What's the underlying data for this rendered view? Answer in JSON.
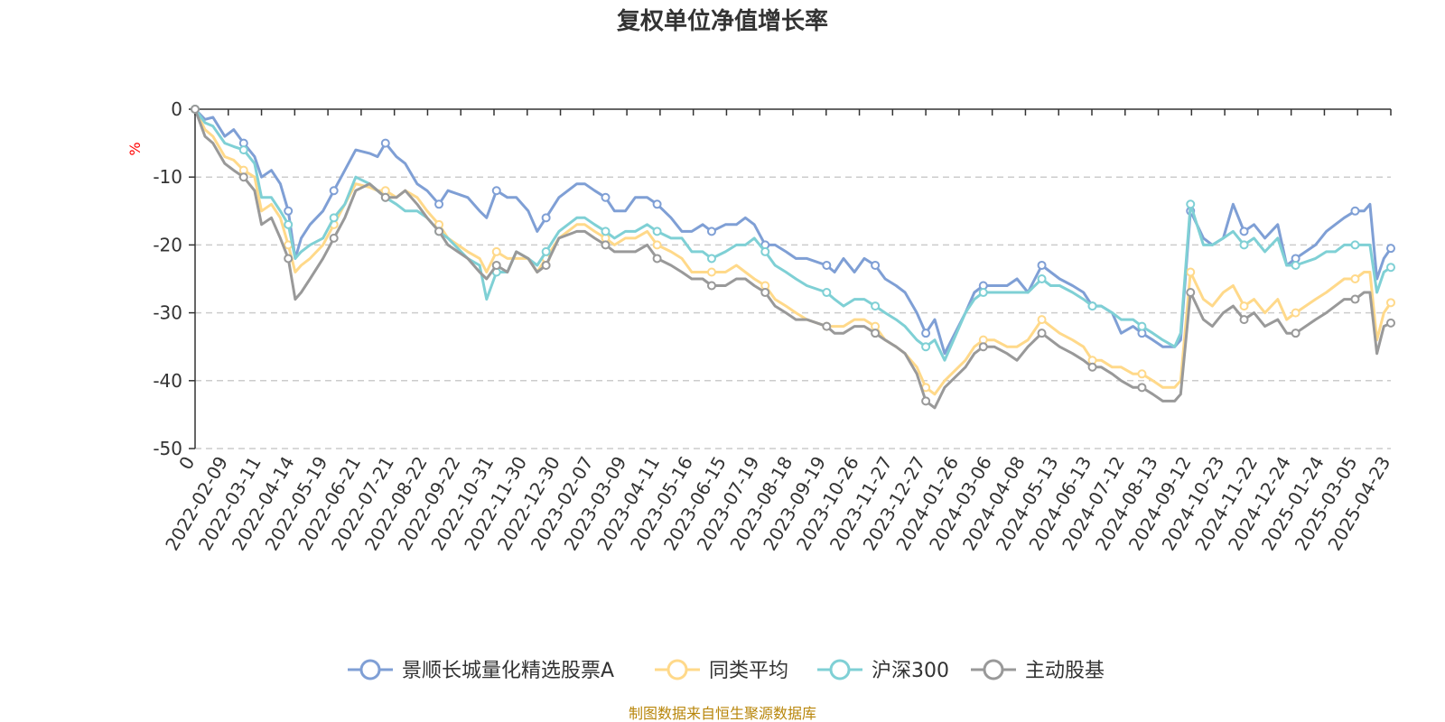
{
  "chart_data": {
    "type": "line",
    "title": "复权单位净值增长率",
    "ylabel": "%",
    "ylim": [
      -50,
      0
    ],
    "yticks": [
      0,
      -10,
      -20,
      -30,
      -40,
      -50
    ],
    "grid": "horizontal dashed",
    "legend_position": "bottom",
    "x_start": "2022-01-10",
    "x_end": "2025-04-30",
    "x_ticks": [
      "0",
      "2022-02-09",
      "2022-03-11",
      "2022-04-14",
      "2022-05-19",
      "2022-06-21",
      "2022-07-21",
      "2022-08-22",
      "2022-09-22",
      "2022-10-31",
      "2022-11-30",
      "2022-12-30",
      "2023-02-07",
      "2023-03-09",
      "2023-04-11",
      "2023-05-16",
      "2023-06-15",
      "2023-07-19",
      "2023-08-18",
      "2023-09-19",
      "2023-10-26",
      "2023-11-27",
      "2023-12-27",
      "2024-01-26",
      "2024-03-06",
      "2024-04-08",
      "2024-05-13",
      "2024-06-13",
      "2024-07-12",
      "2024-08-13",
      "2024-09-12",
      "2024-10-23",
      "2024-11-22",
      "2024-12-24",
      "2025-01-24",
      "2025-03-05",
      "2025-04-23"
    ],
    "x": [
      "2022-01-10",
      "2022-01-20",
      "2022-01-28",
      "2022-02-09",
      "2022-02-18",
      "2022-02-28",
      "2022-03-11",
      "2022-03-18",
      "2022-03-28",
      "2022-04-06",
      "2022-04-14",
      "2022-04-21",
      "2022-04-27",
      "2022-05-06",
      "2022-05-19",
      "2022-05-30",
      "2022-06-10",
      "2022-06-21",
      "2022-07-05",
      "2022-07-13",
      "2022-07-21",
      "2022-08-01",
      "2022-08-10",
      "2022-08-22",
      "2022-09-01",
      "2022-09-13",
      "2022-09-22",
      "2022-10-12",
      "2022-10-24",
      "2022-10-31",
      "2022-11-10",
      "2022-11-21",
      "2022-11-30",
      "2022-12-12",
      "2022-12-21",
      "2022-12-30",
      "2023-01-12",
      "2023-01-30",
      "2023-02-07",
      "2023-02-17",
      "2023-02-28",
      "2023-03-09",
      "2023-03-20",
      "2023-03-30",
      "2023-04-11",
      "2023-04-21",
      "2023-05-05",
      "2023-05-16",
      "2023-05-26",
      "2023-06-06",
      "2023-06-15",
      "2023-06-29",
      "2023-07-10",
      "2023-07-19",
      "2023-07-28",
      "2023-08-08",
      "2023-08-18",
      "2023-08-29",
      "2023-09-08",
      "2023-09-19",
      "2023-10-09",
      "2023-10-17",
      "2023-10-26",
      "2023-11-06",
      "2023-11-16",
      "2023-11-27",
      "2023-12-07",
      "2023-12-18",
      "2023-12-27",
      "2024-01-08",
      "2024-01-17",
      "2024-01-26",
      "2024-02-05",
      "2024-02-26",
      "2024-03-06",
      "2024-03-15",
      "2024-03-26",
      "2024-04-08",
      "2024-04-18",
      "2024-04-29",
      "2024-05-13",
      "2024-05-22",
      "2024-05-31",
      "2024-06-13",
      "2024-06-24",
      "2024-07-03",
      "2024-07-12",
      "2024-07-23",
      "2024-08-01",
      "2024-08-13",
      "2024-08-22",
      "2024-09-02",
      "2024-09-12",
      "2024-09-24",
      "2024-09-30",
      "2024-10-10",
      "2024-10-23",
      "2024-11-01",
      "2024-11-12",
      "2024-11-22",
      "2024-12-03",
      "2024-12-13",
      "2024-12-24",
      "2025-01-06",
      "2025-01-15",
      "2025-01-24",
      "2025-02-13",
      "2025-02-24",
      "2025-03-05",
      "2025-03-14",
      "2025-03-25",
      "2025-04-03",
      "2025-04-09",
      "2025-04-16",
      "2025-04-23",
      "2025-04-30"
    ],
    "series": [
      {
        "name": "景顺长城量化精选股票A",
        "color": "#7f9fd5",
        "values": [
          0,
          -1.5,
          -1.2,
          -4,
          -3,
          -5,
          -7,
          -10,
          -9,
          -11,
          -15,
          -22,
          -19,
          -17,
          -15,
          -12,
          -9,
          -6,
          -6.5,
          -7,
          -5,
          -7,
          -8,
          -11,
          -12,
          -14,
          -12,
          -13,
          -15,
          -16,
          -12,
          -13,
          -13,
          -15,
          -18,
          -16,
          -13,
          -11,
          -11,
          -12,
          -13,
          -15,
          -15,
          -13,
          -13,
          -14,
          -16,
          -18,
          -18,
          -17,
          -18,
          -17,
          -17,
          -16,
          -17,
          -20,
          -20,
          -21,
          -22,
          -22,
          -23,
          -24,
          -22,
          -24,
          -22,
          -23,
          -25,
          -26,
          -27,
          -30,
          -33,
          -31,
          -36,
          -30,
          -27,
          -26,
          -26,
          -26,
          -25,
          -27,
          -23,
          -24,
          -25,
          -26,
          -27,
          -29,
          -29,
          -30,
          -33,
          -32,
          -33,
          -34,
          -35,
          -35,
          -34,
          -15,
          -19,
          -20,
          -19,
          -14,
          -18,
          -17,
          -19,
          -17,
          -23,
          -22,
          -20,
          -18,
          -17,
          -16,
          -15,
          -15,
          -14,
          -25,
          -22,
          -20.5
        ]
      },
      {
        "name": "同类平均",
        "color": "#ffd98a",
        "values": [
          0,
          -3,
          -4,
          -7,
          -7.5,
          -9,
          -10,
          -15,
          -14,
          -16,
          -20,
          -24,
          -23,
          -22,
          -20,
          -17,
          -14,
          -11,
          -11.5,
          -12,
          -12,
          -13,
          -12,
          -13,
          -15,
          -17,
          -19,
          -21,
          -22,
          -24,
          -21,
          -22,
          -22,
          -22,
          -24,
          -22,
          -19,
          -17,
          -17,
          -18,
          -19,
          -20,
          -19,
          -19,
          -18,
          -20,
          -21,
          -22,
          -24,
          -24,
          -24,
          -24,
          -23,
          -24,
          -25,
          -26,
          -28,
          -29,
          -30,
          -31,
          -32,
          -32,
          -32,
          -31,
          -31,
          -32,
          -34,
          -35,
          -36,
          -38,
          -41,
          -42,
          -40,
          -37,
          -35,
          -34,
          -34,
          -35,
          -35,
          -34,
          -31,
          -32,
          -33,
          -34,
          -35,
          -37,
          -37,
          -38,
          -38,
          -39,
          -39,
          -40,
          -41,
          -41,
          -40,
          -24,
          -28,
          -29,
          -27,
          -26,
          -29,
          -28,
          -30,
          -28,
          -31,
          -30,
          -28,
          -27,
          -26,
          -25,
          -25,
          -24,
          -24,
          -34,
          -30,
          -28.5
        ]
      },
      {
        "name": "沪深300",
        "color": "#7fd0d5",
        "values": [
          0,
          -2,
          -2.5,
          -5,
          -5.5,
          -6,
          -8,
          -13,
          -13,
          -15,
          -17,
          -22,
          -21,
          -20,
          -19,
          -16,
          -14,
          -10,
          -11,
          -12,
          -13,
          -14,
          -15,
          -15,
          -16,
          -18,
          -19,
          -22,
          -23,
          -28,
          -24,
          -24,
          -21,
          -22,
          -23,
          -21,
          -18,
          -16,
          -16,
          -17,
          -18,
          -19,
          -18,
          -18,
          -17,
          -18,
          -19,
          -19,
          -21,
          -21,
          -22,
          -21,
          -20,
          -20,
          -19,
          -21,
          -23,
          -24,
          -25,
          -26,
          -27,
          -28,
          -29,
          -28,
          -28,
          -29,
          -30,
          -31,
          -32,
          -34,
          -35,
          -34,
          -37,
          -30,
          -28,
          -27,
          -27,
          -27,
          -27,
          -27,
          -25,
          -26,
          -26,
          -27,
          -28,
          -29,
          -29,
          -30,
          -31,
          -31,
          -32,
          -33,
          -34,
          -35,
          -33,
          -14,
          -20,
          -20,
          -19,
          -18,
          -20,
          -19,
          -21,
          -19,
          -23,
          -23,
          -22,
          -21,
          -21,
          -20,
          -20,
          -20,
          -20,
          -27,
          -24,
          -23.3
        ]
      },
      {
        "name": "主动股基",
        "color": "#999999",
        "values": [
          0,
          -4,
          -5,
          -8,
          -9,
          -10,
          -12,
          -17,
          -16,
          -19,
          -22,
          -28,
          -27,
          -25,
          -22,
          -19,
          -16,
          -12,
          -11,
          -12,
          -13,
          -13,
          -12,
          -14,
          -16,
          -18,
          -20,
          -22,
          -24,
          -25,
          -23,
          -24,
          -21,
          -22,
          -24,
          -23,
          -19,
          -18,
          -18,
          -19,
          -20,
          -21,
          -21,
          -21,
          -20,
          -22,
          -23,
          -24,
          -25,
          -25,
          -26,
          -26,
          -25,
          -25,
          -26,
          -27,
          -29,
          -30,
          -31,
          -31,
          -32,
          -33,
          -33,
          -32,
          -32,
          -33,
          -34,
          -35,
          -36,
          -39,
          -43,
          -44,
          -41,
          -38,
          -36,
          -35,
          -35,
          -36,
          -37,
          -35,
          -33,
          -34,
          -35,
          -36,
          -37,
          -38,
          -38,
          -39,
          -40,
          -41,
          -41,
          -42,
          -43,
          -43,
          -42,
          -27,
          -31,
          -32,
          -30,
          -29,
          -31,
          -30,
          -32,
          -31,
          -33,
          -33,
          -31,
          -30,
          -29,
          -28,
          -28,
          -27,
          -27,
          -36,
          -32,
          -31.5
        ]
      }
    ]
  },
  "source_note": "制图数据来自恒生聚源数据库"
}
